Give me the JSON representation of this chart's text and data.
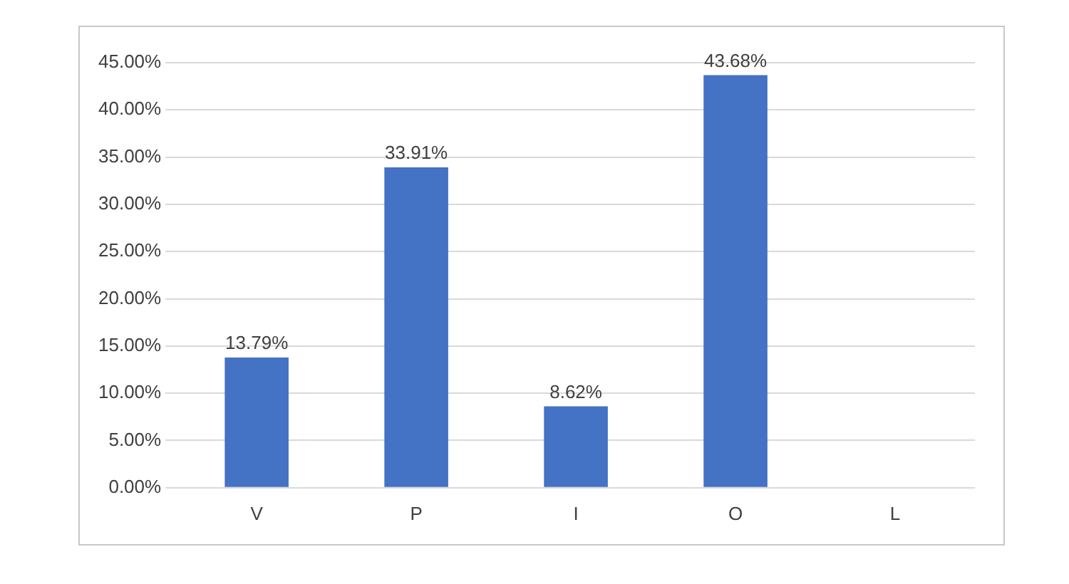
{
  "chart_data": {
    "type": "bar",
    "categories": [
      "V",
      "P",
      "I",
      "O",
      "L"
    ],
    "values": [
      13.79,
      33.91,
      8.62,
      43.68,
      0
    ],
    "value_labels": [
      "13.79%",
      "33.91%",
      "8.62%",
      "43.68%",
      null
    ],
    "color": "#4472c4",
    "ylim": [
      0,
      45
    ],
    "yticks": [
      {
        "value": 0,
        "label": "0.00%"
      },
      {
        "value": 5,
        "label": "5.00%"
      },
      {
        "value": 10,
        "label": "10.00%"
      },
      {
        "value": 15,
        "label": "15.00%"
      },
      {
        "value": 20,
        "label": "20.00%"
      },
      {
        "value": 25,
        "label": "25.00%"
      },
      {
        "value": 30,
        "label": "30.00%"
      },
      {
        "value": 35,
        "label": "35.00%"
      },
      {
        "value": 40,
        "label": "40.00%"
      },
      {
        "value": 45,
        "label": "45.00%"
      }
    ],
    "grid": "y",
    "legend": false
  }
}
